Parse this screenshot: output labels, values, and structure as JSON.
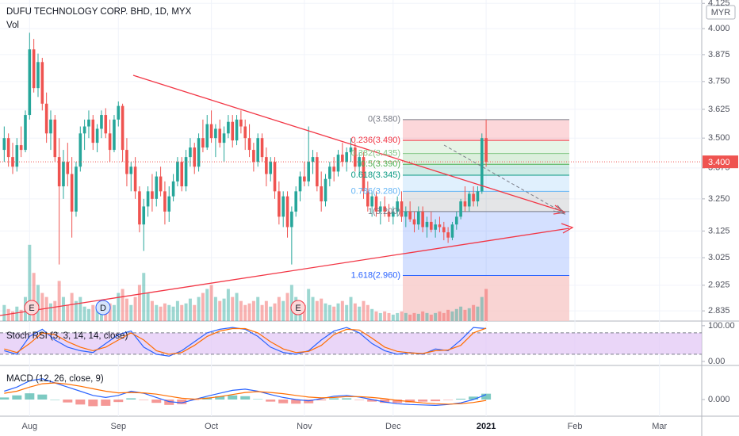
{
  "chart_data": {
    "type": "candlestick",
    "title": "DUFU TECHNOLOGY CORP. BHD, 1D, MYX",
    "currency": "MYR",
    "volume_label": "Vol",
    "log_scale": true,
    "grid": true,
    "up_color": "#26a69a",
    "down_color": "#ef5350",
    "xlim": [
      -7,
      159
    ],
    "xticks": [
      {
        "value": 0,
        "label": "Aug"
      },
      {
        "value": 21,
        "label": "Sep"
      },
      {
        "value": 43,
        "label": "Oct"
      },
      {
        "value": 65,
        "label": "Nov"
      },
      {
        "value": 86,
        "label": "Dec"
      },
      {
        "value": 108,
        "label": "2021"
      },
      {
        "value": 129,
        "label": "Feb"
      },
      {
        "value": 149,
        "label": "Mar"
      }
    ],
    "ylim": [
      2.8,
      4.142
    ],
    "yticks": [
      {
        "value": 4.125,
        "label": "4.125"
      },
      {
        "value": 4.0,
        "label": "4.000"
      },
      {
        "value": 3.875,
        "label": "3.875"
      },
      {
        "value": 3.75,
        "label": "3.750"
      },
      {
        "value": 3.625,
        "label": "3.625"
      },
      {
        "value": 3.5,
        "label": "3.500"
      },
      {
        "value": 3.375,
        "label": "3.375"
      },
      {
        "value": 3.25,
        "label": "3.250"
      },
      {
        "value": 3.125,
        "label": "3.125"
      },
      {
        "value": 3.025,
        "label": "3.025"
      },
      {
        "value": 2.925,
        "label": "2.925"
      },
      {
        "value": 2.835,
        "label": "2.835"
      }
    ],
    "last_price": {
      "value": 3.4,
      "label": "3.400"
    },
    "x": [
      -6,
      -5,
      -4,
      -3,
      -2,
      -1,
      0,
      1,
      2,
      3,
      4,
      5,
      6,
      7,
      8,
      9,
      10,
      11,
      12,
      13,
      14,
      15,
      16,
      17,
      18,
      19,
      20,
      21,
      22,
      23,
      24,
      25,
      26,
      27,
      28,
      29,
      30,
      31,
      32,
      33,
      34,
      35,
      36,
      37,
      38,
      39,
      40,
      41,
      42,
      43,
      44,
      45,
      46,
      47,
      48,
      49,
      50,
      51,
      52,
      53,
      54,
      55,
      56,
      57,
      58,
      59,
      60,
      61,
      62,
      63,
      64,
      65,
      66,
      67,
      68,
      69,
      70,
      71,
      72,
      73,
      74,
      75,
      76,
      77,
      78,
      79,
      80,
      81,
      82,
      83,
      84,
      85,
      86,
      87,
      88,
      89,
      90,
      91,
      92,
      93,
      94,
      95,
      96,
      97,
      98,
      99,
      100,
      101,
      102,
      103,
      104,
      105,
      106,
      107,
      108
    ],
    "ohlc": [
      [
        3.45,
        3.55,
        3.4,
        3.5
      ],
      [
        3.5,
        3.52,
        3.38,
        3.42
      ],
      [
        3.42,
        3.48,
        3.35,
        3.38
      ],
      [
        3.38,
        3.5,
        3.36,
        3.47
      ],
      [
        3.47,
        3.55,
        3.42,
        3.45
      ],
      [
        3.45,
        3.62,
        3.44,
        3.6
      ],
      [
        3.6,
        3.98,
        3.58,
        3.9
      ],
      [
        3.9,
        3.95,
        3.7,
        3.72
      ],
      [
        3.72,
        3.88,
        3.68,
        3.84
      ],
      [
        3.84,
        3.86,
        3.62,
        3.65
      ],
      [
        3.65,
        3.7,
        3.48,
        3.52
      ],
      [
        3.52,
        3.62,
        3.45,
        3.58
      ],
      [
        3.58,
        3.6,
        3.4,
        3.42
      ],
      [
        3.42,
        3.5,
        3.0,
        3.3
      ],
      [
        3.3,
        3.45,
        3.25,
        3.4
      ],
      [
        3.4,
        3.48,
        3.3,
        3.35
      ],
      [
        3.35,
        3.42,
        3.1,
        3.2
      ],
      [
        3.2,
        3.4,
        3.18,
        3.38
      ],
      [
        3.38,
        3.55,
        3.36,
        3.52
      ],
      [
        3.52,
        3.58,
        3.45,
        3.55
      ],
      [
        3.55,
        3.62,
        3.5,
        3.58
      ],
      [
        3.58,
        3.6,
        3.45,
        3.48
      ],
      [
        3.48,
        3.56,
        3.44,
        3.54
      ],
      [
        3.54,
        3.62,
        3.5,
        3.6
      ],
      [
        3.6,
        3.63,
        3.5,
        3.52
      ],
      [
        3.52,
        3.58,
        3.4,
        3.45
      ],
      [
        3.45,
        3.6,
        3.44,
        3.58
      ],
      [
        3.58,
        3.66,
        3.55,
        3.64
      ],
      [
        3.64,
        3.65,
        3.4,
        3.45
      ],
      [
        3.45,
        3.5,
        3.3,
        3.35
      ],
      [
        3.35,
        3.4,
        3.28,
        3.38
      ],
      [
        3.38,
        3.42,
        3.25,
        3.28
      ],
      [
        3.28,
        3.3,
        3.12,
        3.15
      ],
      [
        3.15,
        3.25,
        3.05,
        3.22
      ],
      [
        3.22,
        3.3,
        3.18,
        3.28
      ],
      [
        3.28,
        3.35,
        3.2,
        3.25
      ],
      [
        3.25,
        3.36,
        3.22,
        3.34
      ],
      [
        3.34,
        3.38,
        3.26,
        3.28
      ],
      [
        3.28,
        3.32,
        3.15,
        3.2
      ],
      [
        3.2,
        3.3,
        3.16,
        3.26
      ],
      [
        3.26,
        3.35,
        3.24,
        3.32
      ],
      [
        3.32,
        3.42,
        3.3,
        3.4
      ],
      [
        3.4,
        3.42,
        3.28,
        3.3
      ],
      [
        3.3,
        3.45,
        3.28,
        3.42
      ],
      [
        3.42,
        3.5,
        3.38,
        3.46
      ],
      [
        3.46,
        3.48,
        3.35,
        3.38
      ],
      [
        3.38,
        3.52,
        3.36,
        3.5
      ],
      [
        3.5,
        3.58,
        3.44,
        3.46
      ],
      [
        3.46,
        3.6,
        3.45,
        3.56
      ],
      [
        3.56,
        3.62,
        3.48,
        3.5
      ],
      [
        3.5,
        3.56,
        3.42,
        3.54
      ],
      [
        3.54,
        3.58,
        3.46,
        3.48
      ],
      [
        3.48,
        3.55,
        3.4,
        3.52
      ],
      [
        3.52,
        3.6,
        3.5,
        3.57
      ],
      [
        3.57,
        3.6,
        3.46,
        3.49
      ],
      [
        3.49,
        3.6,
        3.47,
        3.58
      ],
      [
        3.58,
        3.62,
        3.52,
        3.55
      ],
      [
        3.55,
        3.58,
        3.45,
        3.5
      ],
      [
        3.5,
        3.56,
        3.42,
        3.45
      ],
      [
        3.45,
        3.48,
        3.36,
        3.4
      ],
      [
        3.4,
        3.52,
        3.38,
        3.5
      ],
      [
        3.5,
        3.52,
        3.4,
        3.42
      ],
      [
        3.42,
        3.46,
        3.3,
        3.35
      ],
      [
        3.35,
        3.42,
        3.32,
        3.4
      ],
      [
        3.4,
        3.42,
        3.25,
        3.28
      ],
      [
        3.28,
        3.32,
        3.15,
        3.18
      ],
      [
        3.18,
        3.28,
        3.14,
        3.26
      ],
      [
        3.26,
        3.28,
        3.1,
        3.14
      ],
      [
        3.14,
        3.22,
        3.0,
        3.2
      ],
      [
        3.2,
        3.3,
        3.18,
        3.28
      ],
      [
        3.28,
        3.36,
        3.24,
        3.34
      ],
      [
        3.34,
        3.4,
        3.3,
        3.32
      ],
      [
        3.32,
        3.55,
        3.3,
        3.4
      ],
      [
        3.4,
        3.45,
        3.35,
        3.42
      ],
      [
        3.42,
        3.44,
        3.28,
        3.3
      ],
      [
        3.3,
        3.36,
        3.2,
        3.24
      ],
      [
        3.24,
        3.35,
        3.22,
        3.33
      ],
      [
        3.33,
        3.4,
        3.3,
        3.38
      ],
      [
        3.38,
        3.42,
        3.32,
        3.36
      ],
      [
        3.36,
        3.45,
        3.34,
        3.43
      ],
      [
        3.43,
        3.48,
        3.38,
        3.4
      ],
      [
        3.4,
        3.46,
        3.36,
        3.44
      ],
      [
        3.44,
        3.5,
        3.4,
        3.46
      ],
      [
        3.46,
        3.48,
        3.36,
        3.38
      ],
      [
        3.38,
        3.44,
        3.34,
        3.42
      ],
      [
        3.42,
        3.44,
        3.25,
        3.28
      ],
      [
        3.28,
        3.32,
        3.2,
        3.22
      ],
      [
        3.22,
        3.28,
        3.18,
        3.26
      ],
      [
        3.26,
        3.28,
        3.18,
        3.2
      ],
      [
        3.2,
        3.24,
        3.15,
        3.22
      ],
      [
        3.22,
        3.26,
        3.18,
        3.2
      ],
      [
        3.2,
        3.23,
        3.16,
        3.18
      ],
      [
        3.18,
        3.22,
        3.15,
        3.2
      ],
      [
        3.2,
        3.26,
        3.18,
        3.24
      ],
      [
        3.24,
        3.28,
        3.16,
        3.18
      ],
      [
        3.18,
        3.22,
        3.14,
        3.2
      ],
      [
        3.2,
        3.24,
        3.16,
        3.17
      ],
      [
        3.17,
        3.2,
        3.12,
        3.15
      ],
      [
        3.15,
        3.22,
        3.13,
        3.2
      ],
      [
        3.2,
        3.22,
        3.12,
        3.14
      ],
      [
        3.14,
        3.18,
        3.1,
        3.16
      ],
      [
        3.16,
        3.2,
        3.12,
        3.13
      ],
      [
        3.13,
        3.17,
        3.1,
        3.15
      ],
      [
        3.15,
        3.18,
        3.12,
        3.14
      ],
      [
        3.14,
        3.16,
        3.09,
        3.12
      ],
      [
        3.12,
        3.14,
        3.08,
        3.1
      ],
      [
        3.1,
        3.16,
        3.09,
        3.15
      ],
      [
        3.15,
        3.2,
        3.13,
        3.18
      ],
      [
        3.18,
        3.25,
        3.17,
        3.24
      ],
      [
        3.24,
        3.3,
        3.2,
        3.22
      ],
      [
        3.22,
        3.28,
        3.2,
        3.27
      ],
      [
        3.27,
        3.3,
        3.22,
        3.24
      ],
      [
        3.24,
        3.3,
        3.22,
        3.28
      ],
      [
        3.28,
        3.52,
        3.27,
        3.5
      ],
      [
        3.5,
        3.58,
        3.38,
        3.4
      ]
    ],
    "volume_ylim": [
      0,
      400
    ],
    "volume": [
      20,
      15,
      12,
      18,
      14,
      30,
      95,
      60,
      45,
      35,
      30,
      22,
      25,
      50,
      30,
      20,
      35,
      25,
      30,
      18,
      15,
      20,
      18,
      25,
      15,
      22,
      20,
      35,
      40,
      28,
      20,
      30,
      45,
      60,
      35,
      25,
      20,
      18,
      22,
      20,
      18,
      25,
      20,
      22,
      28,
      20,
      30,
      35,
      40,
      45,
      30,
      25,
      28,
      40,
      30,
      35,
      25,
      20,
      22,
      25,
      30,
      20,
      25,
      18,
      22,
      30,
      25,
      35,
      45,
      30,
      25,
      20,
      40,
      30,
      25,
      28,
      22,
      20,
      18,
      22,
      25,
      20,
      30,
      22,
      18,
      25,
      20,
      15,
      12,
      10,
      12,
      10,
      8,
      10,
      12,
      10,
      8,
      10,
      9,
      12,
      10,
      8,
      10,
      12,
      10,
      14,
      12,
      15,
      18,
      14,
      16,
      20,
      18,
      30,
      40
    ],
    "events": [
      "E",
      "D",
      "E"
    ],
    "fib": {
      "below_color": "#f8c9c8",
      "levels": [
        {
          "value": 3.58,
          "label": "0(3.580)",
          "color": "#787b86"
        },
        {
          "value": 3.49,
          "label": "0.236(3.490)",
          "color": "#f23645"
        },
        {
          "value": 3.435,
          "label": "0.382(3.435)",
          "color": "#81c784"
        },
        {
          "value": 3.39,
          "label": "0.5(3.390)",
          "color": "#4caf50"
        },
        {
          "value": 3.345,
          "label": "0.618(3.345)",
          "color": "#089981"
        },
        {
          "value": 3.28,
          "label": "0.786(3.280)",
          "color": "#64b5f6"
        },
        {
          "value": 3.2,
          "label": "1(3.200)",
          "color": "#787b86"
        },
        {
          "value": 2.96,
          "label": "1.618(2.960)",
          "color": "#2962ff"
        }
      ]
    },
    "stoch": {
      "title": "Stoch RSI (3, 3, 14, 14, close)",
      "k_color": "#2962ff",
      "d_color": "#ff6d00",
      "band_color": "#e1c4f5",
      "ylim": [
        -9,
        113
      ],
      "yticks": [
        {
          "value": 100,
          "label": "100.00"
        },
        {
          "value": 0,
          "label": "0.00"
        }
      ],
      "bands": [
        20,
        80
      ],
      "x": [
        -6,
        -3,
        0,
        3,
        6,
        9,
        12,
        15,
        18,
        21,
        24,
        27,
        30,
        33,
        36,
        39,
        42,
        45,
        48,
        51,
        54,
        57,
        60,
        63,
        66,
        69,
        72,
        75,
        78,
        81,
        84,
        87,
        90,
        93,
        96,
        99,
        102,
        105,
        108
      ],
      "k": [
        30,
        20,
        70,
        90,
        60,
        40,
        30,
        25,
        50,
        75,
        85,
        40,
        20,
        15,
        30,
        55,
        80,
        90,
        95,
        90,
        70,
        40,
        25,
        20,
        30,
        60,
        85,
        95,
        80,
        50,
        30,
        20,
        25,
        20,
        35,
        30,
        60,
        95,
        92
      ],
      "d": [
        35,
        25,
        50,
        80,
        75,
        55,
        40,
        30,
        40,
        60,
        80,
        60,
        30,
        20,
        25,
        45,
        70,
        85,
        92,
        92,
        80,
        55,
        35,
        25,
        28,
        45,
        75,
        90,
        88,
        65,
        40,
        28,
        24,
        22,
        30,
        32,
        45,
        80,
        93
      ]
    },
    "macd": {
      "title": "MACD (12, 26, close, 9)",
      "macd_color": "#2962ff",
      "signal_color": "#ff6d00",
      "ylim": [
        -0.04,
        0.08
      ],
      "yticks": [
        {
          "value": 0,
          "label": "0.000"
        }
      ],
      "x": [
        -6,
        -3,
        0,
        3,
        6,
        9,
        12,
        15,
        18,
        21,
        24,
        27,
        30,
        33,
        36,
        39,
        42,
        45,
        48,
        51,
        54,
        57,
        60,
        63,
        66,
        69,
        72,
        75,
        78,
        81,
        84,
        87,
        90,
        93,
        96,
        99,
        102,
        105,
        108
      ],
      "macd": [
        0.02,
        0.03,
        0.045,
        0.05,
        0.04,
        0.03,
        0.02,
        0.01,
        0.005,
        0.01,
        0.02,
        0.015,
        0.005,
        -0.005,
        -0.008,
        0,
        0.008,
        0.015,
        0.022,
        0.025,
        0.02,
        0.012,
        0.005,
        0,
        -0.003,
        0.002,
        0.008,
        0.01,
        0.006,
        0,
        -0.006,
        -0.01,
        -0.012,
        -0.013,
        -0.014,
        -0.012,
        -0.008,
        0,
        0.012
      ],
      "signal": [
        0.015,
        0.02,
        0.03,
        0.038,
        0.04,
        0.037,
        0.032,
        0.026,
        0.02,
        0.016,
        0.017,
        0.016,
        0.013,
        0.008,
        0.003,
        0.001,
        0.003,
        0.007,
        0.012,
        0.017,
        0.019,
        0.017,
        0.014,
        0.01,
        0.006,
        0.004,
        0.005,
        0.007,
        0.007,
        0.005,
        0.002,
        -0.002,
        -0.005,
        -0.008,
        -0.01,
        -0.011,
        -0.01,
        -0.007,
        -0.002
      ],
      "hist": [
        0.005,
        0.01,
        0.015,
        0.012,
        0,
        -0.007,
        -0.012,
        -0.016,
        -0.015,
        -0.006,
        0.003,
        -0.001,
        -0.008,
        -0.013,
        -0.011,
        -0.001,
        0.005,
        0.008,
        0.01,
        0.008,
        0.001,
        -0.005,
        -0.009,
        -0.01,
        -0.009,
        -0.002,
        0.003,
        0.003,
        -0.001,
        -0.005,
        -0.008,
        -0.008,
        -0.007,
        -0.005,
        -0.004,
        -0.001,
        0.002,
        0.007,
        0.014
      ]
    }
  }
}
